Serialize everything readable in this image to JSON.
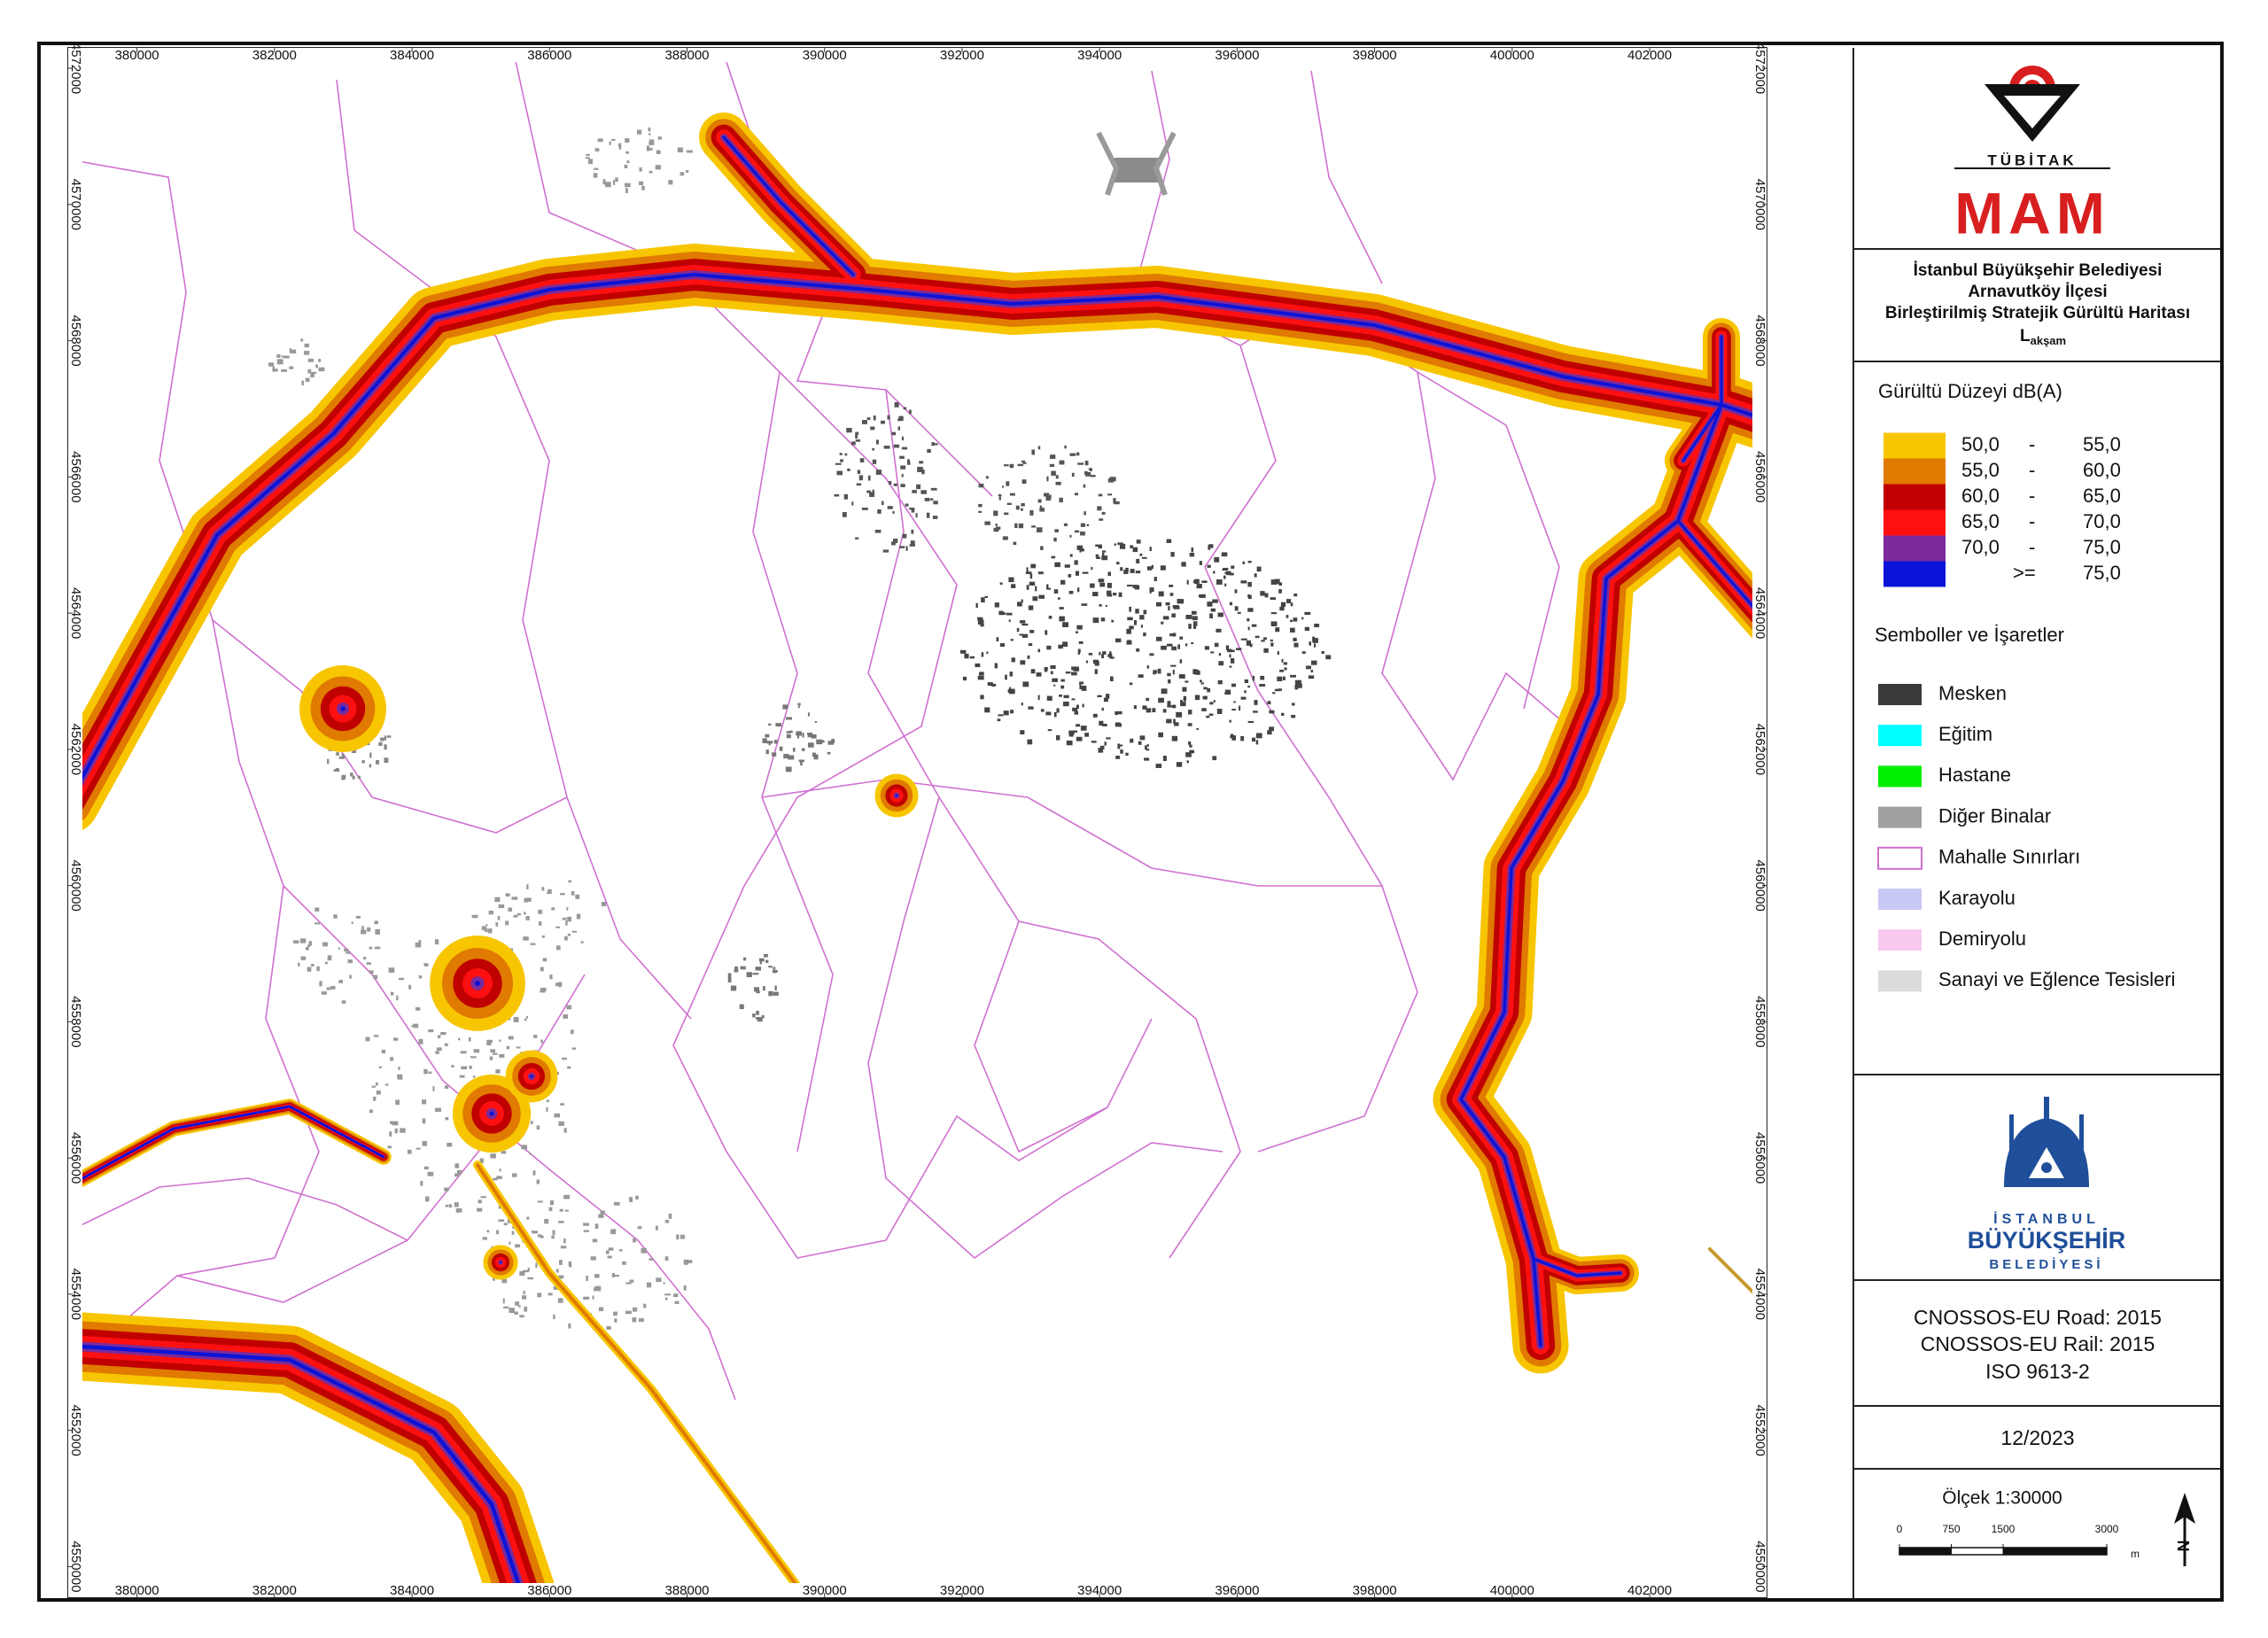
{
  "map": {
    "xlim": [
      379000,
      403700
    ],
    "ylim": [
      4549550,
      4572300
    ],
    "xticks": [
      380000,
      382000,
      384000,
      386000,
      388000,
      390000,
      392000,
      394000,
      396000,
      398000,
      400000,
      402000
    ],
    "yticks": [
      4550000,
      4552000,
      4554000,
      4556000,
      4558000,
      4560000,
      4562000,
      4564000,
      4566000,
      4568000,
      4570000,
      4572000
    ]
  },
  "logo": {
    "org": "TÜBİTAK",
    "unit": "MAM"
  },
  "title": {
    "lines": [
      "İstanbul Büyükşehir Belediyesi",
      "Arnavutköy İlçesi",
      "Birleştirilmiş Stratejik Gürültü Haritası"
    ],
    "symbol": "L",
    "subscript": "akşam"
  },
  "noise_legend": {
    "title": "Gürültü Düzeyi dB(A)",
    "items": [
      {
        "from": "50,0",
        "sep": "-",
        "to": "55,0",
        "color": "#f7c600"
      },
      {
        "from": "55,0",
        "sep": "-",
        "to": "60,0",
        "color": "#e07a00"
      },
      {
        "from": "60,0",
        "sep": "-",
        "to": "65,0",
        "color": "#c00000"
      },
      {
        "from": "65,0",
        "sep": "-",
        "to": "70,0",
        "color": "#ff1010"
      },
      {
        "from": "70,0",
        "sep": "-",
        "to": "75,0",
        "color": "#7a2a9a"
      },
      {
        "sep": ">=",
        "to": "75,0",
        "color": "#0a14d8"
      }
    ]
  },
  "symbols": {
    "title": "Semboller ve İşaretler",
    "items": [
      {
        "label": "Mesken",
        "color": "#3a3a3a"
      },
      {
        "label": "Eğitim",
        "color": "#00ffff"
      },
      {
        "label": "Hastane",
        "color": "#00ee00"
      },
      {
        "label": "Diğer Binalar",
        "color": "#a0a0a0"
      },
      {
        "label": "Mahalle Sınırları",
        "color": "#ffffff",
        "border": "#d070d0"
      },
      {
        "label": "Karayolu",
        "color": "#c8c8f5"
      },
      {
        "label": "Demiryolu",
        "color": "#f8c8f0"
      },
      {
        "label": "Sanayi ve Eğlence Tesisleri",
        "color": "#dcdcdc"
      }
    ]
  },
  "ibb": {
    "line1": "İSTANBUL",
    "line2": "BÜYÜKŞEHİR",
    "line3": "BELEDİYESİ"
  },
  "standards": [
    "CNOSSOS-EU Road: 2015",
    "CNOSSOS-EU Rail: 2015",
    "ISO 9613-2"
  ],
  "date": "12/2023",
  "scale": {
    "label": "Ölçek 1:30000",
    "ticks": [
      0,
      750,
      1500,
      3000
    ],
    "unit": "m",
    "north": "N"
  }
}
